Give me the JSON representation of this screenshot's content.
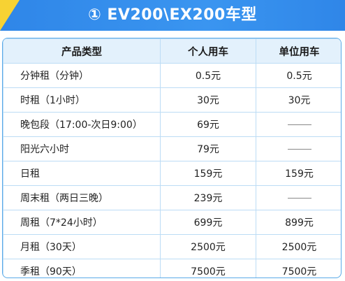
{
  "title": "① EV200\\EX200车型",
  "colors": {
    "banner": "#2f86e8",
    "corner": "#f7d233",
    "header_bg": "#e3f1fc",
    "border": "#bcdcf5"
  },
  "table": {
    "headers": [
      "产品类型",
      "个人用车",
      "单位用车"
    ],
    "rows": [
      {
        "type": "分钟租（分钟）",
        "personal": "0.5元",
        "company": "0.5元"
      },
      {
        "type": "时租（1小时）",
        "personal": "30元",
        "company": "30元"
      },
      {
        "type": "晚包段（17:00-次日9:00）",
        "personal": "69元",
        "company": null
      },
      {
        "type": "阳光六小时",
        "personal": "79元",
        "company": null
      },
      {
        "type": "日租",
        "personal": "159元",
        "company": "159元"
      },
      {
        "type": "周末租（两日三晚）",
        "personal": "239元",
        "company": null
      },
      {
        "type": "周租（7*24小时）",
        "personal": "699元",
        "company": "899元"
      },
      {
        "type": "月租（30天）",
        "personal": "2500元",
        "company": "2500元"
      },
      {
        "type": "季租（90天）",
        "personal": "7500元",
        "company": "7500元"
      }
    ]
  }
}
